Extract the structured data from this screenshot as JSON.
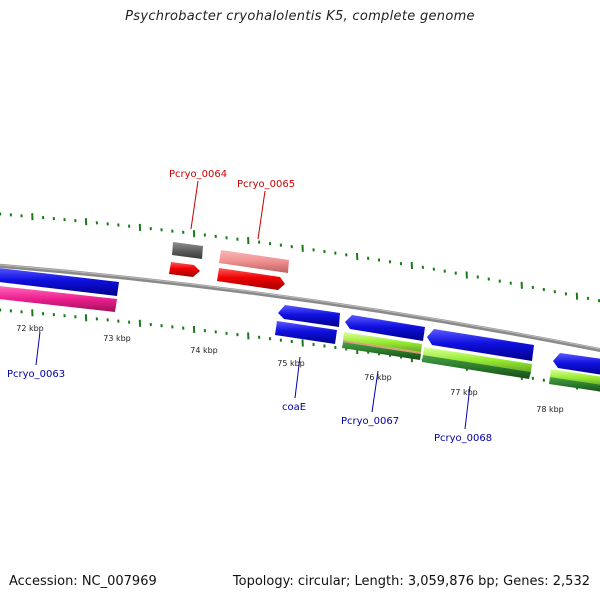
{
  "title": "Psychrobacter cryohalolentis K5, complete genome",
  "footer": {
    "accession": "Accession: NC_007969",
    "stats": "Topology: circular; Length: 3,059,876 bp; Genes: 2,532"
  },
  "ticks": [
    {
      "label": "72 kbp"
    },
    {
      "label": "73 kbp"
    },
    {
      "label": "74 kbp"
    },
    {
      "label": "75 kbp"
    },
    {
      "label": "76 kbp"
    },
    {
      "label": "77 kbp"
    },
    {
      "label": "78 kbp"
    }
  ],
  "gene_labels": [
    {
      "text": "Pcryo_0064",
      "color": "#cc0000"
    },
    {
      "text": "Pcryo_0065",
      "color": "#cc0000"
    },
    {
      "text": "Pcryo_0063",
      "color": "#0000aa"
    },
    {
      "text": "coaE",
      "color": "#0000aa"
    },
    {
      "text": "Pcryo_0067",
      "color": "#0000aa"
    },
    {
      "text": "Pcryo_0068",
      "color": "#0000aa"
    }
  ],
  "colors": {
    "backbone": "#8a8a8a",
    "tick": "#1a7a1a",
    "forward_cds": "#ee0000",
    "forward_feature": "#f09090",
    "gray_feature": "#606060",
    "reverse_cds": "#1010e0",
    "magenta_feature": "#ee2090",
    "lime_feature": "#99ee33",
    "dark_green_feature": "#2a7a2a"
  }
}
